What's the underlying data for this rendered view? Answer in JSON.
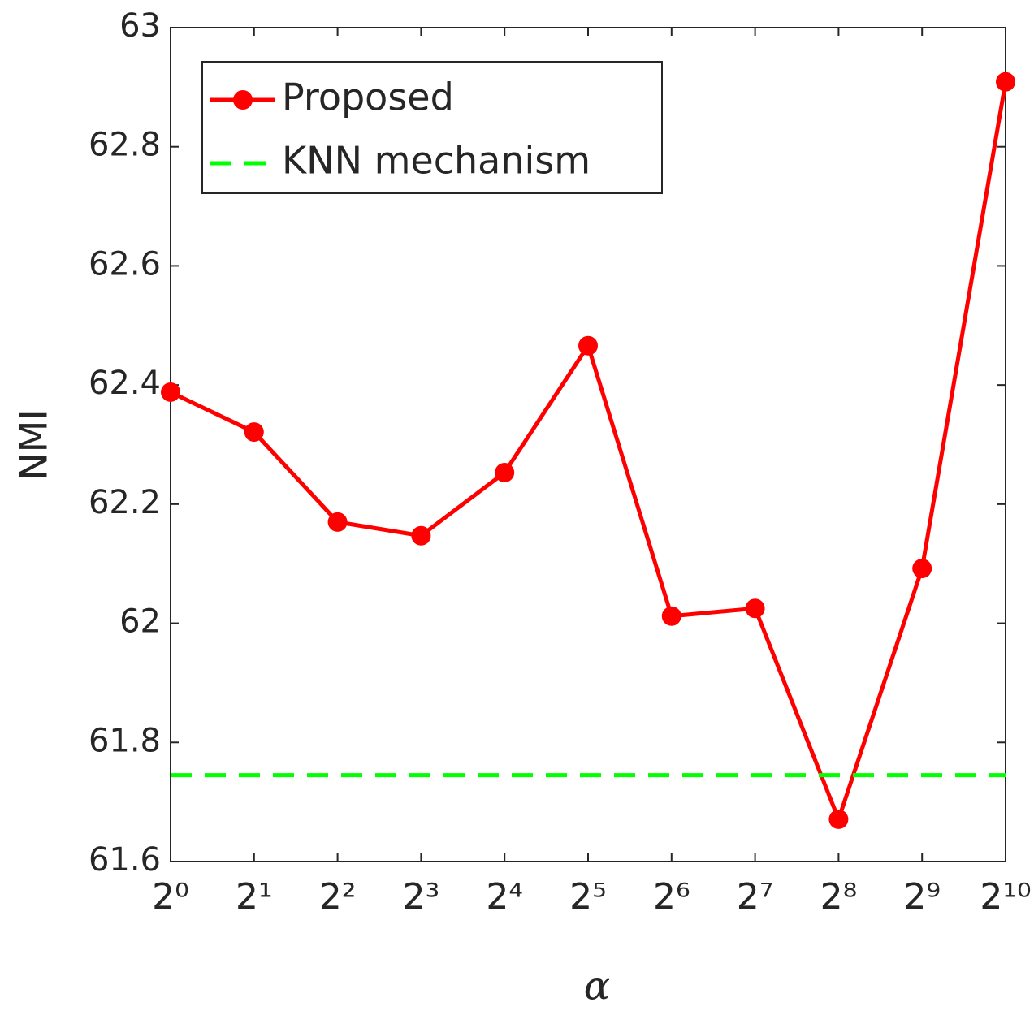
{
  "chart_data": {
    "type": "line",
    "xlabel": "α",
    "ylabel": "NMI",
    "x": [
      1,
      2,
      4,
      8,
      16,
      32,
      64,
      128,
      256,
      512,
      1024
    ],
    "xscale": "log",
    "xlim": [
      1,
      1024
    ],
    "xticks": [
      {
        "value": 1,
        "label": "2⁰"
      },
      {
        "value": 2,
        "label": "2¹"
      },
      {
        "value": 4,
        "label": "2²"
      },
      {
        "value": 8,
        "label": "2³"
      },
      {
        "value": 16,
        "label": "2⁴"
      },
      {
        "value": 32,
        "label": "2⁵"
      },
      {
        "value": 64,
        "label": "2⁶"
      },
      {
        "value": 128,
        "label": "2⁷"
      },
      {
        "value": 256,
        "label": "2⁸"
      },
      {
        "value": 512,
        "label": "2⁹"
      },
      {
        "value": 1024,
        "label": "2¹⁰"
      }
    ],
    "ylim": [
      61.6,
      63
    ],
    "yticks": [
      61.6,
      61.8,
      62,
      62.2,
      62.4,
      62.6,
      62.8,
      63
    ],
    "legend": "upper left",
    "series": [
      {
        "name": "Proposed",
        "color": "#ff0000",
        "values": [
          62.388,
          62.321,
          62.17,
          62.147,
          62.253,
          62.466,
          62.012,
          62.025,
          61.671,
          62.092,
          62.909
        ]
      },
      {
        "name": "KNN mechanism",
        "color": "#00ff00",
        "hline": 61.745,
        "dashed": true
      }
    ]
  }
}
